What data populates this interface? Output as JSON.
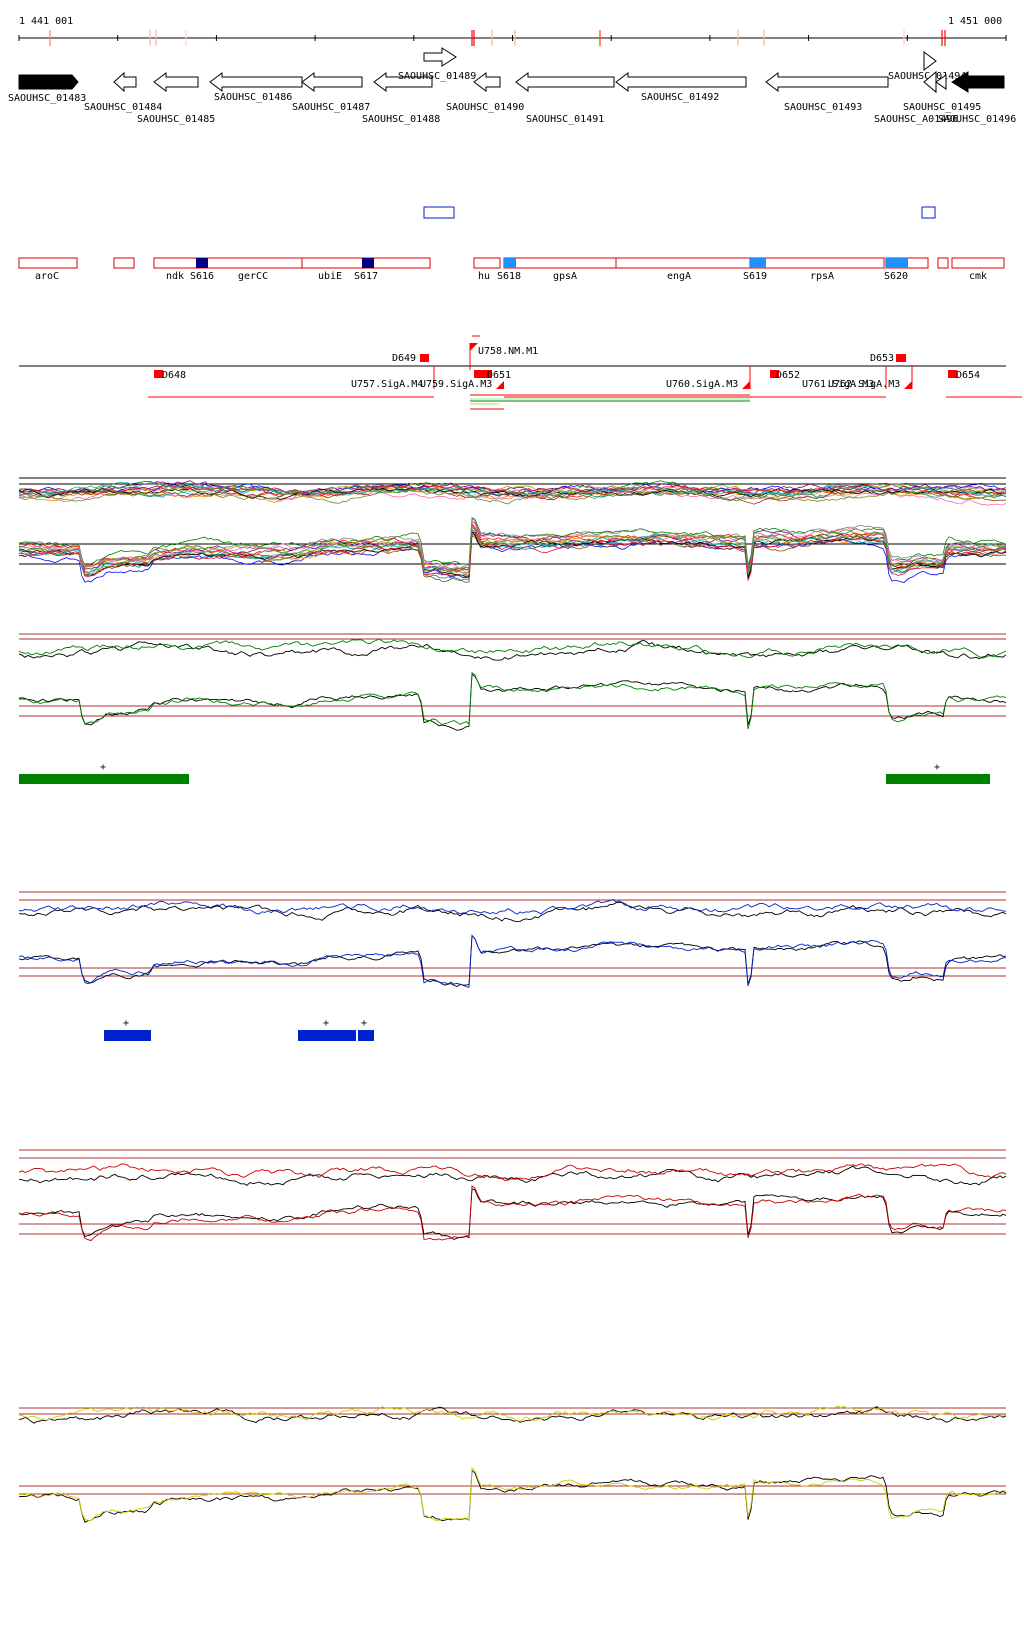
{
  "coordinates": {
    "start_label": "1 441 001",
    "end_label": "1 451 000"
  },
  "colors": {
    "gene_outline": "#000000",
    "gene_highlight": "#000000",
    "operon_outline": "#e00000",
    "sigma_dark": "#000080",
    "sigma_light": "#1e90ff",
    "terminator": "#ff0000",
    "track_green": "#008000",
    "track_blue": "#0022cc",
    "track_red": "#cc0000",
    "track_yellow": "#cccc00",
    "guide_line": "#b03030"
  },
  "genes": [
    {
      "label": "SAOUHSC_01483",
      "filled": true
    },
    {
      "label": "SAOUHSC_01484"
    },
    {
      "label": "SAOUHSC_01485"
    },
    {
      "label": "SAOUHSC_01486"
    },
    {
      "label": "SAOUHSC_01487"
    },
    {
      "label": "SAOUHSC_01488"
    },
    {
      "label": "SAOUHSC_01489"
    },
    {
      "label": "SAOUHSC_01490"
    },
    {
      "label": "SAOUHSC_01491"
    },
    {
      "label": "SAOUHSC_01492"
    },
    {
      "label": "SAOUHSC_01493"
    },
    {
      "label": "SAOUHSC_01494"
    },
    {
      "label": "SAOUHSC_01495"
    },
    {
      "label": "SAOUHSC_A01496"
    },
    {
      "label": "SAOUHSC_01496",
      "filled": true
    }
  ],
  "operons": [
    {
      "label": "aroC"
    },
    {
      "label": "ndk"
    },
    {
      "label": "gerCC"
    },
    {
      "label": "ubiE"
    },
    {
      "label": "hu"
    },
    {
      "label": "gpsA"
    },
    {
      "label": "engA"
    },
    {
      "label": "rpsA"
    },
    {
      "label": "cmk"
    }
  ],
  "sigma_sites": [
    "S616",
    "S617",
    "S618",
    "S619",
    "S620"
  ],
  "features": [
    "D648",
    "D649",
    "U757.SigA.M4",
    "U758.NM.M1",
    "U759.SigA.M3",
    "D651",
    "U760.SigA.M3",
    "D652",
    "U761.SigA.M3",
    "U762.SigA.M3",
    "D653",
    "D654"
  ],
  "tracks": [
    {
      "name": "green",
      "peaks": [
        "+",
        "+"
      ]
    },
    {
      "name": "blue",
      "peaks": [
        "+",
        "+",
        "+"
      ]
    },
    {
      "name": "red"
    },
    {
      "name": "yellow"
    }
  ]
}
